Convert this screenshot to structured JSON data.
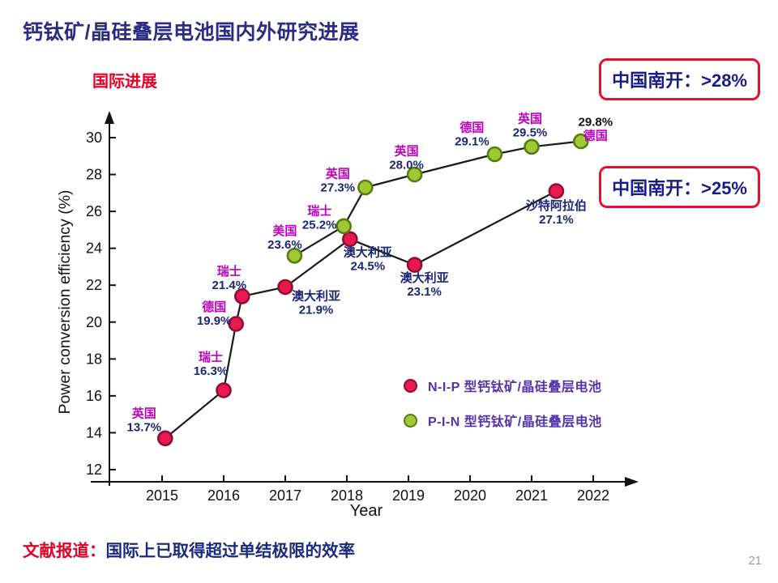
{
  "slide": {
    "title": "钙钛矿/晶硅叠层电池国内外研究进展",
    "section_label": "国际进展",
    "callouts": [
      {
        "text": "中国南开：>28%"
      },
      {
        "text": "中国南开：>25%"
      }
    ],
    "footer": {
      "prefix": "文献报道：",
      "text": "国际上已取得超过单结极限的效率"
    },
    "page_number": "21"
  },
  "colors": {
    "title": "#2c2c86",
    "accent_red": "#e60026",
    "callout_border": "#ea0e2c",
    "callout_text": "#191a8c",
    "country_magenta": "#bf00bf",
    "value_navy": "#1c2674",
    "line_black": "#1a1a1a"
  },
  "chart_data": {
    "type": "line",
    "title": "",
    "xlabel": "Year",
    "ylabel": "Power conversion efficiency (%)",
    "x_ticks": [
      2015,
      2016,
      2017,
      2018,
      2019,
      2020,
      2021,
      2022
    ],
    "y_ticks": [
      12,
      14,
      16,
      18,
      20,
      22,
      24,
      26,
      28,
      30
    ],
    "xlim": [
      2014.7,
      2022.8
    ],
    "ylim": [
      11.5,
      31
    ],
    "grid": false,
    "legend_position": "lower-right-inside",
    "legend": [
      {
        "name": "N-I-P 型钙钛矿/晶硅叠层电池",
        "marker_fill": "#e9184f",
        "marker_stroke": "#8c1030",
        "text_color": "#5433ad"
      },
      {
        "name": "P-I-N 型钙钛矿/晶硅叠层电池",
        "marker_fill": "#9fc832",
        "marker_stroke": "#567d12",
        "text_color": "#5433ad"
      }
    ],
    "series": [
      {
        "id": "nip",
        "name": "N-I-P 型钙钛矿/晶硅叠层电池",
        "marker_fill": "#e9184f",
        "marker_stroke": "#8c1030",
        "points": [
          {
            "x": 2015.05,
            "y": 13.7,
            "label": {
              "dx": -26,
              "dy": -26,
              "lines": [
                {
                  "text": "英国",
                  "color": "#bf00bf"
                },
                {
                  "text": "13.7%",
                  "color": "#1c2674"
                }
              ]
            }
          },
          {
            "x": 2016.0,
            "y": 16.3,
            "label": {
              "dx": -16,
              "dy": -36,
              "lines": [
                {
                  "text": "瑞士",
                  "color": "#bf00bf"
                },
                {
                  "text": "16.3%",
                  "color": "#1c2674"
                }
              ]
            }
          },
          {
            "x": 2016.2,
            "y": 19.9,
            "label": {
              "dx": -27,
              "dy": -16,
              "lines": [
                {
                  "text": "德国",
                  "color": "#bf00bf"
                },
                {
                  "text": "19.9%",
                  "color": "#1c2674"
                }
              ]
            }
          },
          {
            "x": 2016.3,
            "y": 21.4,
            "label": {
              "dx": -16,
              "dy": -26,
              "lines": [
                {
                  "text": "瑞士",
                  "color": "#bf00bf"
                },
                {
                  "text": "21.4%",
                  "color": "#1c2674"
                }
              ]
            }
          },
          {
            "x": 2017.0,
            "y": 21.9,
            "label": {
              "dx": 38,
              "dy": 16,
              "lines": [
                {
                  "text": "澳大利亚",
                  "color": "#1c2674"
                },
                {
                  "text": "21.9%",
                  "color": "#1c2674"
                }
              ]
            }
          },
          {
            "x": 2018.05,
            "y": 24.5,
            "label": {
              "dx": 22,
              "dy": 21,
              "lines": [
                {
                  "text": "澳大利亚",
                  "color": "#1c2674"
                },
                {
                  "text": "24.5%",
                  "color": "#1c2674"
                }
              ]
            }
          },
          {
            "x": 2019.1,
            "y": 23.1,
            "label": {
              "dx": 12,
              "dy": 21,
              "lines": [
                {
                  "text": "澳大利亚",
                  "color": "#1c2674"
                },
                {
                  "text": "23.1%",
                  "color": "#1c2674"
                }
              ]
            }
          },
          {
            "x": 2021.4,
            "y": 27.1,
            "label": {
              "dx": 0,
              "dy": 23,
              "lines": [
                {
                  "text": "沙特阿拉伯",
                  "color": "#1c2674"
                },
                {
                  "text": "27.1%",
                  "color": "#1c2674"
                }
              ]
            }
          }
        ]
      },
      {
        "id": "pin",
        "name": "P-I-N 型钙钛矿/晶硅叠层电池",
        "marker_fill": "#9fc832",
        "marker_stroke": "#567d12",
        "points": [
          {
            "x": 2017.15,
            "y": 23.6,
            "label": {
              "dx": -12,
              "dy": -26,
              "lines": [
                {
                  "text": "美国",
                  "color": "#bf00bf"
                },
                {
                  "text": "23.6%",
                  "color": "#1c2674"
                }
              ]
            }
          },
          {
            "x": 2017.95,
            "y": 25.2,
            "label": {
              "dx": -30,
              "dy": -14,
              "lines": [
                {
                  "text": "瑞士",
                  "color": "#bf00bf"
                },
                {
                  "text": "25.2%",
                  "color": "#1c2674"
                }
              ]
            }
          },
          {
            "x": 2018.3,
            "y": 27.3,
            "label": {
              "dx": -34,
              "dy": -12,
              "lines": [
                {
                  "text": "英国",
                  "color": "#bf00bf"
                },
                {
                  "text": "27.3%",
                  "color": "#1c2674"
                }
              ]
            }
          },
          {
            "x": 2019.1,
            "y": 28.0,
            "label": {
              "dx": -10,
              "dy": -24,
              "lines": [
                {
                  "text": "英国",
                  "color": "#bf00bf"
                },
                {
                  "text": "28.0%",
                  "color": "#1c2674"
                }
              ]
            }
          },
          {
            "x": 2020.4,
            "y": 29.1,
            "label": {
              "dx": -28,
              "dy": -28,
              "lines": [
                {
                  "text": "德国",
                  "color": "#bf00bf"
                },
                {
                  "text": "29.1%",
                  "color": "#1c2674"
                }
              ]
            }
          },
          {
            "x": 2021.0,
            "y": 29.5,
            "label": {
              "dx": -2,
              "dy": -30,
              "lines": [
                {
                  "text": "英国",
                  "color": "#bf00bf"
                },
                {
                  "text": "29.5%",
                  "color": "#1c2674"
                }
              ]
            }
          },
          {
            "x": 2021.8,
            "y": 29.8,
            "label": {
              "dx": 18,
              "dy": -19,
              "lines": [
                {
                  "text": "29.8%",
                  "color": "#111111"
                },
                {
                  "text": "德国",
                  "color": "#bf00bf"
                }
              ]
            }
          }
        ]
      }
    ]
  }
}
